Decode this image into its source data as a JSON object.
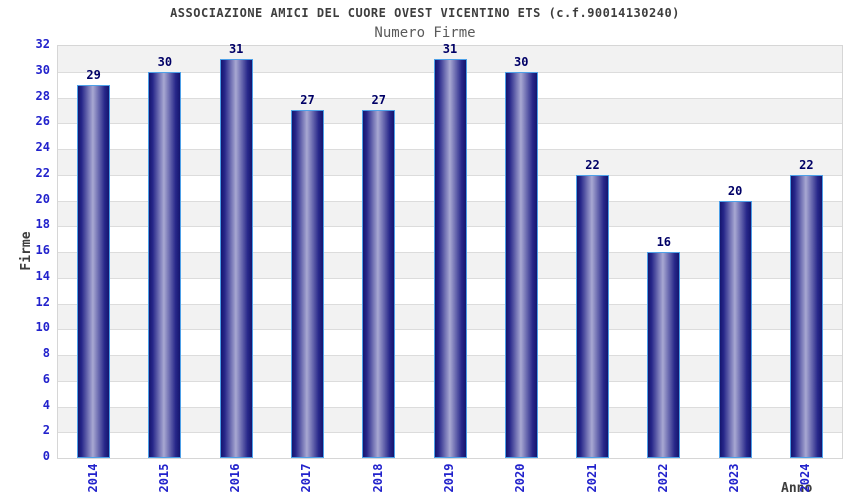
{
  "chart_data": {
    "type": "bar",
    "title": "ASSOCIAZIONE AMICI DEL CUORE OVEST VICENTINO ETS (c.f.90014130240)",
    "subtitle": "Numero Firme",
    "xlabel": "Anno",
    "ylabel": "Firme",
    "categories": [
      "2014",
      "2015",
      "2016",
      "2017",
      "2018",
      "2019",
      "2020",
      "2021",
      "2022",
      "2023",
      "2024"
    ],
    "values": [
      29,
      30,
      31,
      27,
      27,
      31,
      30,
      22,
      16,
      20,
      22
    ],
    "ylim": [
      0,
      32
    ],
    "ytick_step": 2,
    "grid": true,
    "legend": false,
    "band_colors": [
      "#ffffff",
      "#f2f2f2"
    ],
    "colors": {
      "bar_edge": "#4da0e8",
      "bar_dark": "#15156e",
      "bar_light": "#a8a8d2",
      "axis_label": "#2222cc",
      "value_label": "#000066",
      "title_text": "#3d3d3d",
      "gridline": "#dcdcdc"
    }
  }
}
